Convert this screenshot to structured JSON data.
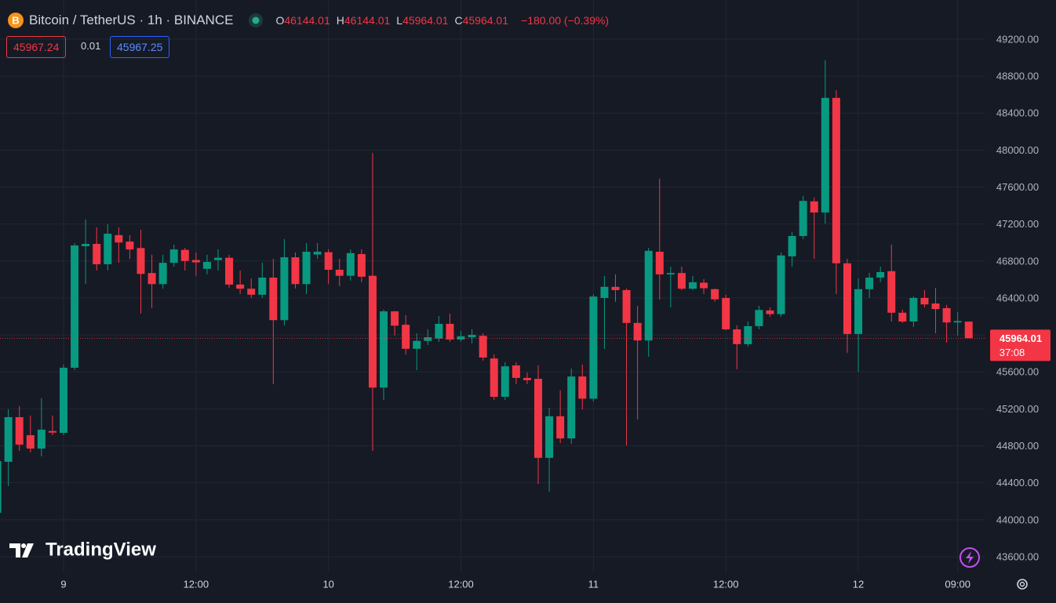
{
  "chart_data": {
    "type": "candlestick",
    "title": "Bitcoin / TetherUS · 1h · BINANCE",
    "ohlc_legend": [
      {
        "key": "O",
        "value": "46144.01"
      },
      {
        "key": "H",
        "value": "46144.01"
      },
      {
        "key": "L",
        "value": "45964.01"
      },
      {
        "key": "C",
        "value": "45964.01"
      }
    ],
    "change": "−180.00 (−0.39%)",
    "bid": "45967.24",
    "spread": "0.01",
    "ask": "45967.25",
    "logo": "TradingView",
    "up_color": "#089981",
    "down_color": "#f23645",
    "grid": true,
    "categories": [
      null,
      null,
      null,
      null,
      null,
      null,
      "9",
      null,
      null,
      null,
      null,
      null,
      null,
      null,
      null,
      null,
      null,
      null,
      "12:00",
      null,
      null,
      null,
      null,
      null,
      null,
      null,
      null,
      null,
      null,
      null,
      "10",
      null,
      null,
      null,
      null,
      null,
      null,
      null,
      null,
      null,
      null,
      null,
      "12:00",
      null,
      null,
      null,
      null,
      null,
      null,
      null,
      null,
      null,
      null,
      null,
      "11",
      null,
      null,
      null,
      null,
      null,
      null,
      null,
      null,
      null,
      null,
      null,
      "12:00",
      null,
      null,
      null,
      null,
      null,
      null,
      null,
      null,
      null,
      null,
      null,
      "12",
      null,
      null,
      null,
      null,
      null,
      null,
      null,
      null,
      "09:00",
      null
    ],
    "open": [
      44075,
      44627,
      45110,
      44915,
      44770,
      44960,
      44940,
      45645,
      46960,
      46985,
      46765,
      47080,
      47010,
      46940,
      46670,
      46550,
      46780,
      46920,
      46810,
      46715,
      46810,
      46835,
      46545,
      46500,
      46435,
      46620,
      46160,
      46840,
      46550,
      46870,
      46895,
      46705,
      46640,
      46875,
      46640,
      45430,
      46255,
      46110,
      45850,
      45935,
      45960,
      46120,
      45950,
      45975,
      45990,
      45745,
      45330,
      45670,
      45535,
      45525,
      44670,
      45120,
      44880,
      45550,
      45310,
      46400,
      46520,
      46485,
      46130,
      45940,
      46900,
      46655,
      46670,
      46500,
      46565,
      46495,
      46400,
      46060,
      45900,
      46095,
      46265,
      46225,
      46850,
      47070,
      47445,
      47325,
      48565,
      46775,
      46010,
      46495,
      46620,
      46690,
      46240,
      46145,
      46400,
      46340,
      46290,
      46135,
      46144.01
    ],
    "high": [
      44650,
      45195,
      45230,
      45127,
      45314,
      45127,
      45680,
      46994,
      47248,
      47164,
      47198,
      47164,
      47079,
      47138,
      46867,
      46867,
      46977,
      46943,
      46892,
      46867,
      46926,
      46867,
      46697,
      46612,
      46782,
      46824,
      47036,
      46892,
      46994,
      46994,
      46926,
      46824,
      46926,
      46926,
      47970,
      46273,
      46260,
      46213,
      46018,
      46061,
      46205,
      46230,
      46044,
      46061,
      46018,
      45789,
      45704,
      45704,
      45594,
      45670,
      45212,
      45399,
      45636,
      45679,
      46442,
      46638,
      46655,
      46502,
      46315,
      46943,
      47690,
      46739,
      46739,
      46638,
      46604,
      46502,
      46434,
      46103,
      46145,
      46315,
      46298,
      46892,
      47113,
      47503,
      47486,
      48971,
      48648,
      46824,
      46612,
      46671,
      46739,
      46977,
      46273,
      46417,
      46485,
      46510,
      46324,
      46247,
      46144.01
    ],
    "low": [
      44040,
      44364,
      44745,
      44728,
      44686,
      44915,
      44915,
      45620,
      46553,
      46697,
      46697,
      46782,
      46824,
      46230,
      46290,
      46502,
      46739,
      46697,
      46638,
      46655,
      46697,
      46510,
      46442,
      46400,
      46400,
      45467,
      46103,
      46502,
      46442,
      46824,
      46553,
      46527,
      46587,
      46570,
      44745,
      45297,
      45993,
      45789,
      45619,
      45891,
      45925,
      45925,
      45925,
      45908,
      45721,
      45297,
      45297,
      45467,
      45467,
      44389,
      44304,
      44830,
      44822,
      45195,
      45280,
      45849,
      46358,
      44805,
      45085,
      45764,
      46383,
      46298,
      46485,
      46485,
      46442,
      46358,
      46050,
      45628,
      45874,
      46061,
      46196,
      46196,
      46739,
      47036,
      46824,
      47205,
      46442,
      45806,
      45602,
      46400,
      46570,
      46145,
      46128,
      46086,
      46298,
      46018,
      45916,
      45993,
      45964.01
    ],
    "close": [
      44635,
      45110,
      44813,
      44770,
      44975,
      44943,
      45645,
      46968,
      46985,
      46765,
      47095,
      47000,
      46925,
      46660,
      46550,
      46780,
      46925,
      46800,
      46785,
      46790,
      46835,
      46545,
      46500,
      46435,
      46620,
      46160,
      46840,
      46550,
      46900,
      46900,
      46705,
      46640,
      46885,
      46630,
      45430,
      46255,
      46100,
      45850,
      45935,
      45975,
      46120,
      45950,
      45985,
      46000,
      45755,
      45330,
      45660,
      45535,
      45510,
      44670,
      45120,
      44880,
      45550,
      45310,
      46415,
      46520,
      46485,
      46130,
      45940,
      46910,
      46655,
      46670,
      46500,
      46570,
      46505,
      46385,
      46060,
      45900,
      46095,
      46270,
      46225,
      46860,
      47070,
      47450,
      47325,
      48565,
      46775,
      46010,
      46495,
      46620,
      46680,
      46240,
      46145,
      46400,
      46330,
      46280,
      46135,
      46150,
      45964.01
    ],
    "ylim": [
      43430,
      49624
    ],
    "yticks": [
      {
        "value": 43600,
        "label": "43600.00"
      },
      {
        "value": 44000,
        "label": "44000.00"
      },
      {
        "value": 44400,
        "label": "44400.00"
      },
      {
        "value": 44800,
        "label": "44800.00"
      },
      {
        "value": 45200,
        "label": "45200.00"
      },
      {
        "value": 45600,
        "label": "45600.00"
      },
      {
        "value": 46000,
        "label": "46000.00"
      },
      {
        "value": 46400,
        "label": "46400.00"
      },
      {
        "value": 46800,
        "label": "46800.00"
      },
      {
        "value": 47200,
        "label": "47200.00"
      },
      {
        "value": 47600,
        "label": "47600.00"
      },
      {
        "value": 48000,
        "label": "48000.00"
      },
      {
        "value": 48400,
        "label": "48400.00"
      },
      {
        "value": 48800,
        "label": "48800.00"
      },
      {
        "value": 49200,
        "label": "49200.00"
      }
    ],
    "last_price": {
      "value": 45964.01,
      "label": "45964.01"
    },
    "countdown": "37:08"
  }
}
